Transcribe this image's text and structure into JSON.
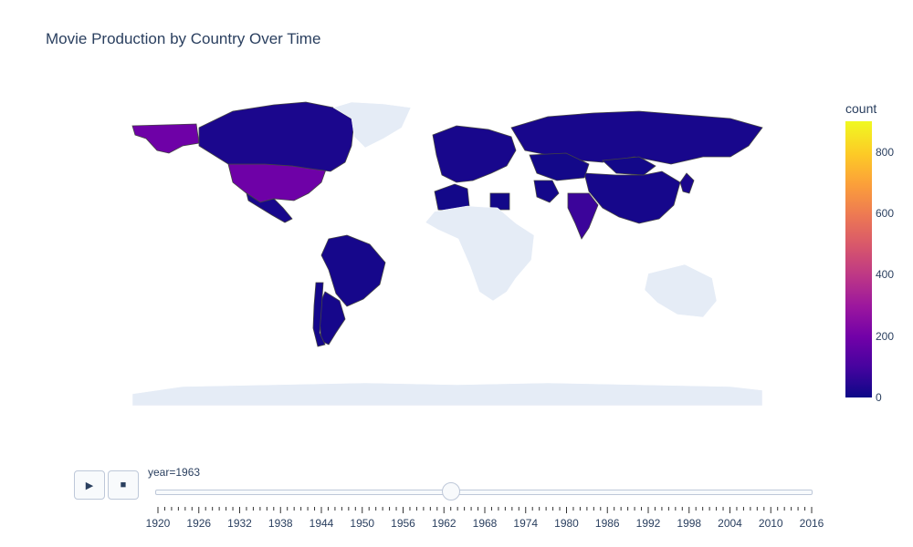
{
  "title": "Movie Production by Country Over Time",
  "colorbar": {
    "title": "count",
    "min": 0,
    "max": 900,
    "ticks": [
      "0",
      "200",
      "400",
      "600",
      "800"
    ],
    "tick_values": [
      0,
      200,
      400,
      600,
      800
    ]
  },
  "colors": {
    "land_no_data": "#e5ecf6",
    "country_border": "#444444",
    "scale_low": "#0d0887",
    "scale_high": "#f0f921"
  },
  "controls": {
    "play_icon": "▶",
    "stop_icon": "■"
  },
  "slider": {
    "label": "year=1963",
    "current_year": 1963,
    "min_year": 1920,
    "max_year": 2016,
    "labels": [
      "1920",
      "1926",
      "1932",
      "1938",
      "1944",
      "1950",
      "1956",
      "1962",
      "1968",
      "1974",
      "1980",
      "1986",
      "1992",
      "1998",
      "2004",
      "2010",
      "2016"
    ]
  },
  "chart_data": {
    "type": "choropleth",
    "projection": "equirectangular",
    "frame_year": 1963,
    "color_scale": "plasma",
    "legend": "right",
    "regions": [
      {
        "name": "United States",
        "count": 190
      },
      {
        "name": "Alaska",
        "count": 190
      },
      {
        "name": "India",
        "count": 80
      },
      {
        "name": "Canada",
        "count": 25
      },
      {
        "name": "Mexico",
        "count": 20
      },
      {
        "name": "Brazil",
        "count": 15
      },
      {
        "name": "Argentina",
        "count": 15
      },
      {
        "name": "Chile",
        "count": 12
      },
      {
        "name": "Russia",
        "count": 20
      },
      {
        "name": "China",
        "count": 15
      },
      {
        "name": "Japan",
        "count": 25
      },
      {
        "name": "Iran",
        "count": 12
      },
      {
        "name": "Algeria",
        "count": 10
      },
      {
        "name": "Egypt",
        "count": 10
      },
      {
        "name": "Europe",
        "count": 20
      },
      {
        "name": "Kazakhstan",
        "count": 10
      },
      {
        "name": "Mongolia",
        "count": 10
      },
      {
        "name": "Greenland",
        "count": null
      },
      {
        "name": "Africa",
        "count": null
      },
      {
        "name": "Australia",
        "count": null
      },
      {
        "name": "Antarctica",
        "count": null
      }
    ]
  }
}
